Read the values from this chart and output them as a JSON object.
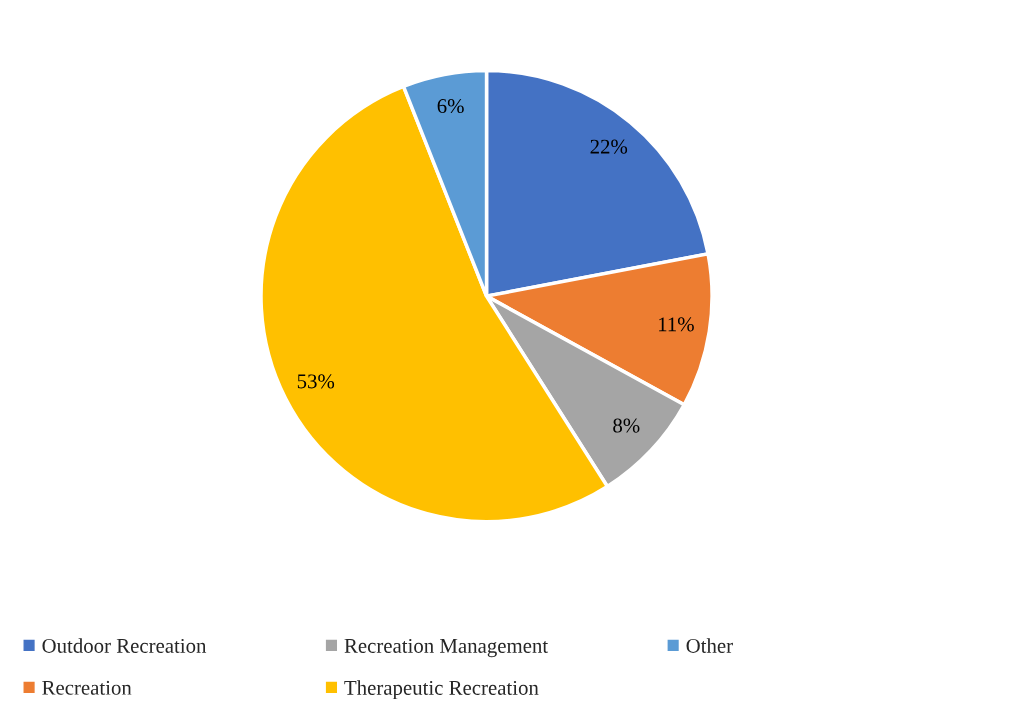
{
  "chart_data": {
    "type": "pie",
    "categories": [
      "Outdoor Recreation",
      "Recreation",
      "Recreation Management",
      "Therapeutic Recreation",
      "Other"
    ],
    "values": [
      22,
      11,
      8,
      53,
      6
    ],
    "colors": [
      "#4472c4",
      "#ed7d31",
      "#a5a5a5",
      "#ffc000",
      "#5b9bd5"
    ],
    "value_labels": [
      "22%",
      "11%",
      "8%",
      "53%",
      "6%"
    ],
    "legend": "bottom"
  }
}
